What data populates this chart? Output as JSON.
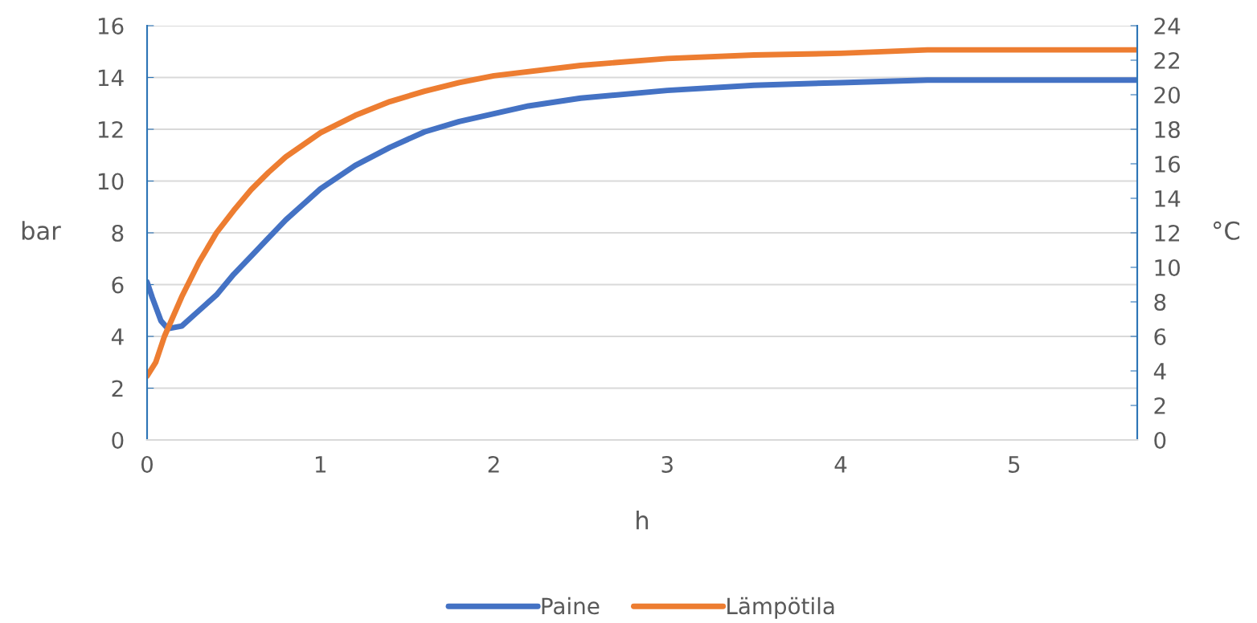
{
  "chart_data": {
    "type": "line",
    "xlabel": "h",
    "ylabel": "bar",
    "y2label": "°C",
    "xlim": [
      0,
      5.71
    ],
    "xticks": [
      0,
      1,
      2,
      3,
      4,
      5
    ],
    "ylim": [
      0,
      16
    ],
    "yticks": [
      0,
      2,
      4,
      6,
      8,
      10,
      12,
      14,
      16
    ],
    "y2lim": [
      0,
      24
    ],
    "y2ticks": [
      0,
      2,
      4,
      6,
      8,
      10,
      12,
      14,
      16,
      18,
      20,
      22,
      24
    ],
    "grid": "y",
    "legend": "bottom",
    "marker": "none",
    "line_style": "solid",
    "series": [
      {
        "name": "Paine",
        "color": "#4472c4",
        "x": [
          0,
          0.03,
          0.08,
          0.12,
          0.2,
          0.3,
          0.4,
          0.5,
          0.6,
          0.7,
          0.8,
          0.9,
          1.0,
          1.2,
          1.4,
          1.6,
          1.8,
          2.0,
          2.2,
          2.5,
          3.0,
          3.5,
          4.0,
          4.5,
          5.0,
          5.71
        ],
        "values": [
          6.1,
          5.5,
          4.6,
          4.3,
          4.4,
          5.0,
          5.6,
          6.4,
          7.1,
          7.8,
          8.5,
          9.1,
          9.7,
          10.6,
          11.3,
          11.9,
          12.3,
          12.6,
          12.9,
          13.2,
          13.5,
          13.7,
          13.8,
          13.9,
          13.9,
          13.9
        ]
      },
      {
        "name": "Lämpötila",
        "color": "#ed7d31",
        "axis": "y2",
        "x": [
          0,
          0.05,
          0.1,
          0.2,
          0.3,
          0.4,
          0.5,
          0.6,
          0.7,
          0.8,
          0.9,
          1.0,
          1.2,
          1.4,
          1.6,
          1.8,
          2.0,
          2.5,
          3.0,
          3.5,
          4.0,
          4.5,
          5.71
        ],
        "values": [
          3.7,
          4.5,
          6.0,
          8.3,
          10.3,
          12.0,
          13.3,
          14.5,
          15.5,
          16.4,
          17.1,
          17.8,
          18.8,
          19.6,
          20.2,
          20.7,
          21.1,
          21.7,
          22.1,
          22.3,
          22.4,
          22.6,
          22.6
        ]
      }
    ]
  }
}
